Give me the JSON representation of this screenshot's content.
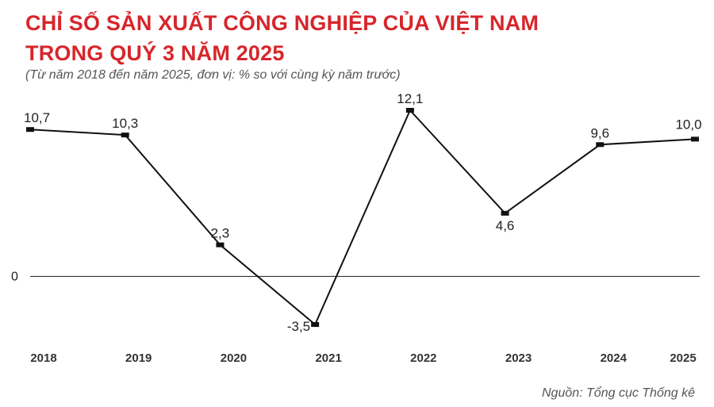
{
  "title_line1": "CHỈ SỐ SẢN XUẤT CÔNG NGHIỆP CỦA VIỆT NAM",
  "title_line2": "TRONG QUÝ 3 NĂM 2025",
  "subtitle": "(Từ năm 2018 đến năm 2025, đơn vị: % so với cùng kỳ năm trước)",
  "source": "Nguồn: Tổng cục Thống kê",
  "colors": {
    "title": "#d7262b",
    "line": "#111111",
    "highlight": "#d7262b",
    "axis": "#333333"
  },
  "chart_data": {
    "type": "line",
    "categories": [
      "2018",
      "2019",
      "2020",
      "2021",
      "2022",
      "2023",
      "2024",
      "2025"
    ],
    "values": [
      10.7,
      10.3,
      2.3,
      -3.5,
      12.1,
      4.6,
      9.6,
      10.0
    ],
    "value_labels": [
      "10,7",
      "10,3",
      "2,3",
      "-3,5",
      "12,1",
      "4,6",
      "9,6",
      "10,0"
    ],
    "highlight_index": 7,
    "y_ticks": [
      {
        "value": 0,
        "label": "0"
      }
    ],
    "xlabel": "",
    "ylabel": "",
    "ylim": [
      -3.5,
      12.1
    ],
    "grid": false,
    "legend": "none"
  }
}
